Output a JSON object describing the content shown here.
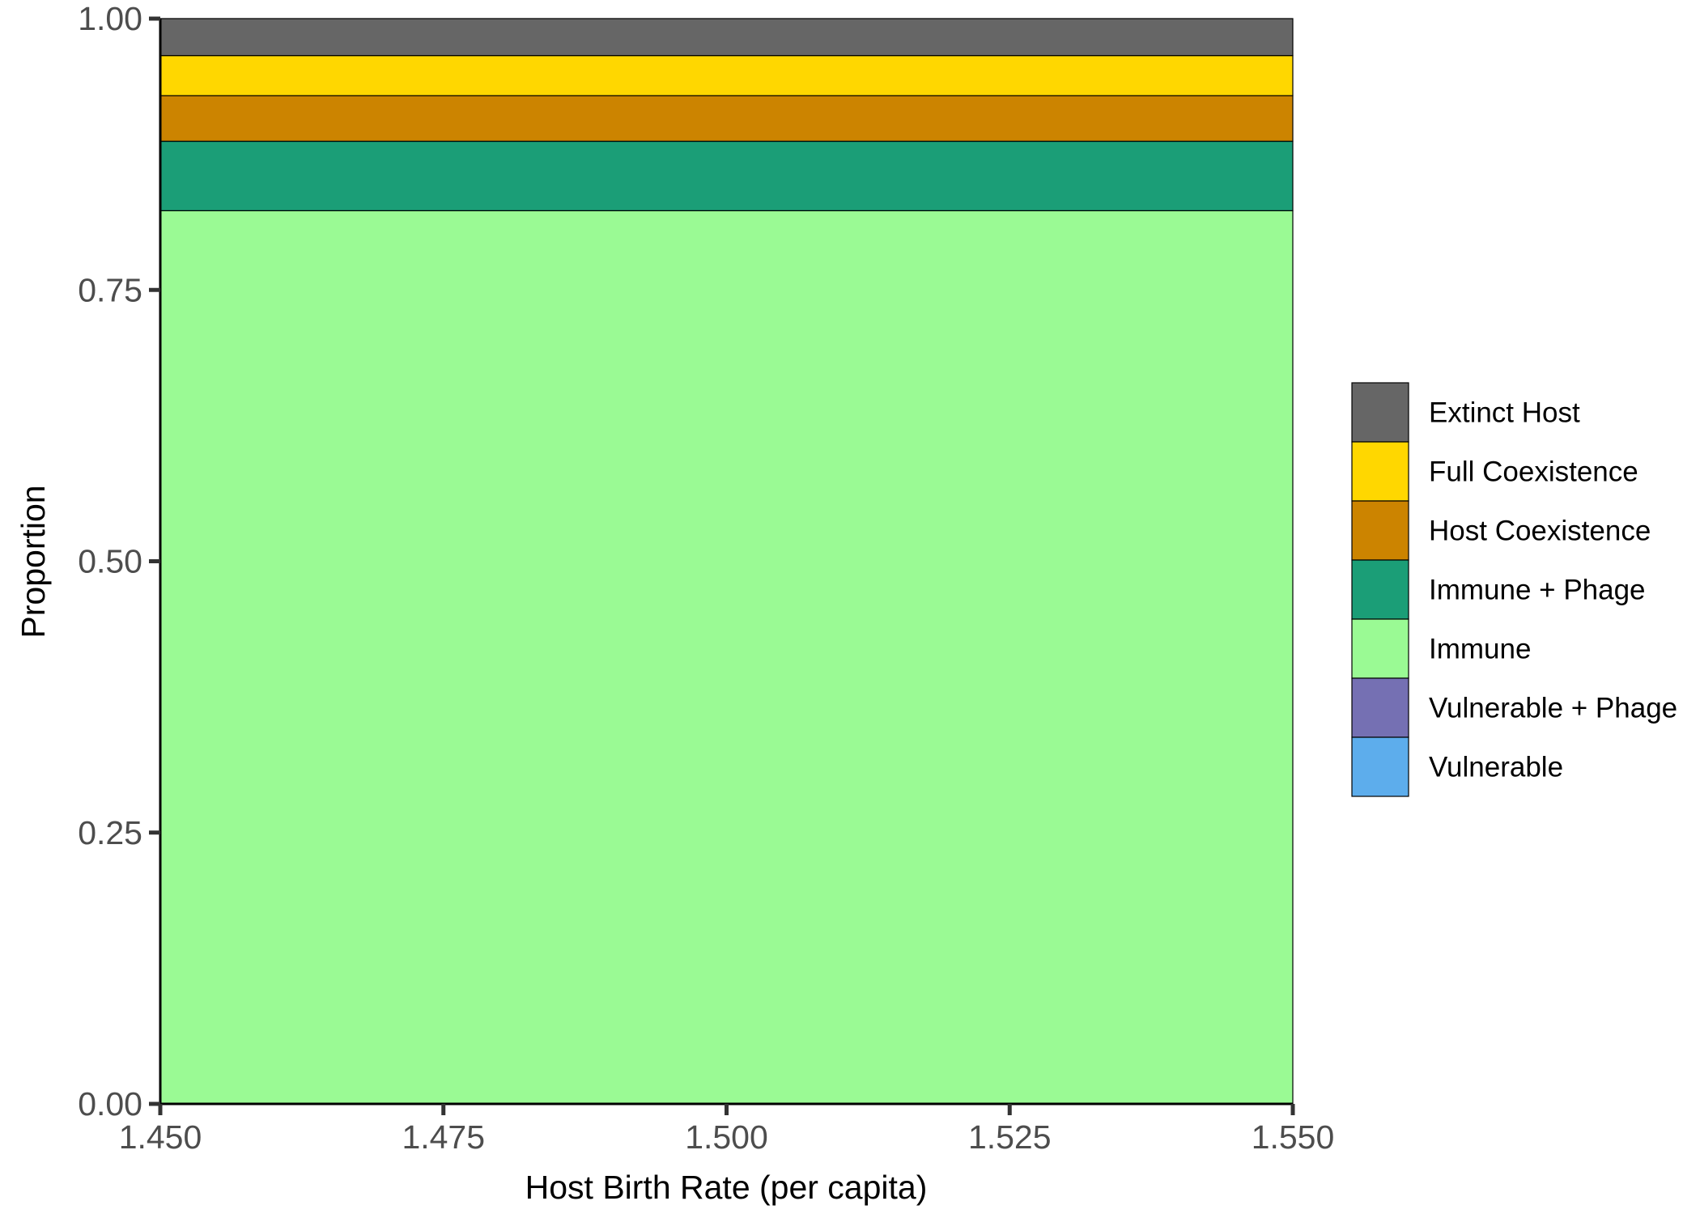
{
  "chart_data": {
    "type": "area",
    "stacked": true,
    "x": [
      1.45,
      1.55
    ],
    "xlim": [
      1.45,
      1.55
    ],
    "ylim": [
      0,
      1
    ],
    "xlabel": "Host Birth Rate (per capita)",
    "ylabel": "Proportion",
    "x_ticks": [
      "1.450",
      "1.475",
      "1.500",
      "1.525",
      "1.550"
    ],
    "y_ticks": [
      "0.00",
      "0.25",
      "0.50",
      "0.75",
      "1.00"
    ],
    "grid": false,
    "legend_position": "right",
    "series": [
      {
        "name": "Extinct Host",
        "color": "#666666",
        "values": [
          0.034,
          0.034
        ]
      },
      {
        "name": "Full Coexistence",
        "color": "#FFD700",
        "values": [
          0.037,
          0.037
        ]
      },
      {
        "name": "Host Coexistence",
        "color": "#CC8400",
        "values": [
          0.042,
          0.042
        ]
      },
      {
        "name": "Immune + Phage",
        "color": "#1B9E77",
        "values": [
          0.064,
          0.064
        ]
      },
      {
        "name": "Immune",
        "color": "#9AFA94",
        "values": [
          0.823,
          0.823
        ]
      },
      {
        "name": "Vulnerable + Phage",
        "color": "#7570B3",
        "values": [
          0,
          0
        ]
      },
      {
        "name": "Vulnerable",
        "color": "#5DADEC",
        "values": [
          0,
          0
        ]
      }
    ]
  }
}
